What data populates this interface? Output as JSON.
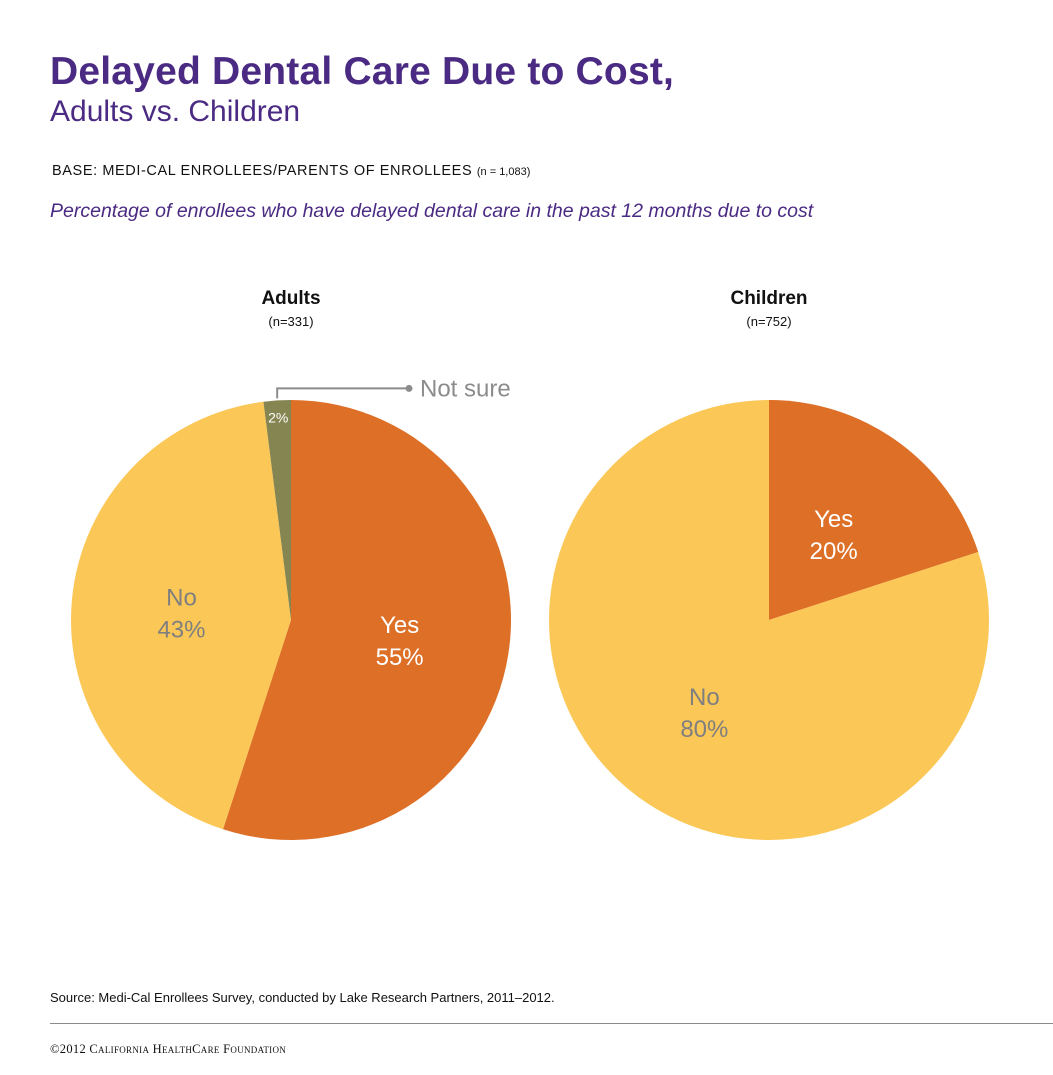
{
  "title": "Delayed Dental Care Due to Cost,",
  "subtitle": "Adults vs. Children",
  "base": {
    "label": "BASE: MEDI-CAL ENROLLEES/PARENTS OF ENROLLEES",
    "n": "(n = 1,083)"
  },
  "description": "Percentage of enrollees who have delayed dental care in the past 12 months due to cost",
  "chart_data": [
    {
      "type": "pie",
      "title": "Adults",
      "subtitle": "(n=331)",
      "slices": [
        {
          "label": "Yes",
          "value": 55,
          "value_label": "55%",
          "color": "#dd6f27",
          "text_color": "#ffffff"
        },
        {
          "label": "No",
          "value": 43,
          "value_label": "43%",
          "color": "#fbc757",
          "text_color": "#7f7f7f"
        },
        {
          "label": "Not sure",
          "value": 2,
          "value_label": "2%",
          "color": "#858552",
          "text_color": "#ffffff",
          "callout": true
        }
      ]
    },
    {
      "type": "pie",
      "title": "Children",
      "subtitle": "(n=752)",
      "slices": [
        {
          "label": "Yes",
          "value": 20,
          "value_label": "20%",
          "color": "#dd6f27",
          "text_color": "#ffffff"
        },
        {
          "label": "No",
          "value": 80,
          "value_label": "80%",
          "color": "#fbc757",
          "text_color": "#7f7f7f"
        }
      ]
    }
  ],
  "callout_color": "#8c8c8c",
  "source": "Source: Medi-Cal Enrollees Survey, conducted by Lake Research Partners, 2011–2012.",
  "copyright": "©2012 California HealthCare Foundation"
}
